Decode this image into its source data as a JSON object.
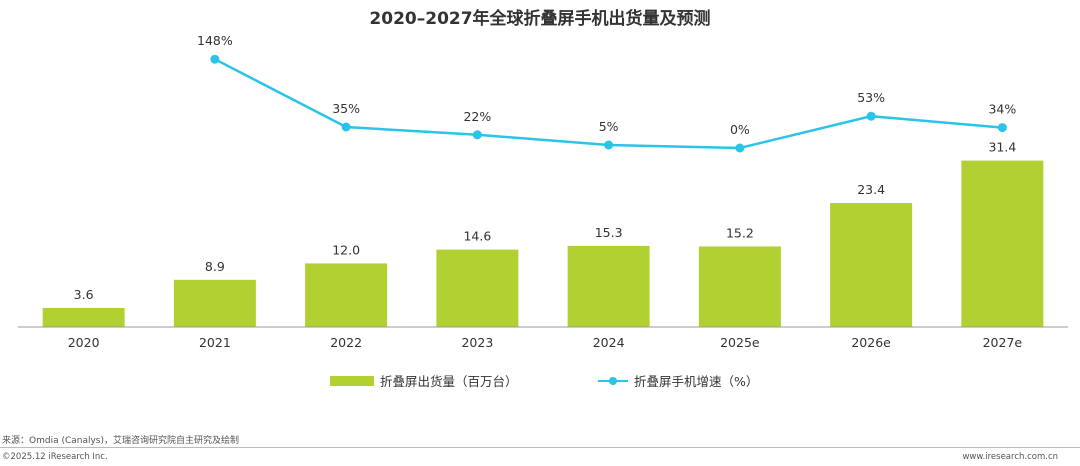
{
  "chart_data": {
    "type": "bar",
    "title": "2020–2027年全球折叠屏手机出货量及预测",
    "categories": [
      "2020",
      "2021",
      "2022",
      "2023",
      "2024",
      "2025e",
      "2026e",
      "2027e"
    ],
    "series": [
      {
        "name": "折叠屏出货量（百万台）",
        "type": "bar",
        "values": [
          3.6,
          8.9,
          12.0,
          14.6,
          15.3,
          15.2,
          23.4,
          31.4
        ],
        "labels": [
          "3.6",
          "8.9",
          "12.0",
          "14.6",
          "15.3",
          "15.2",
          "23.4",
          "31.4"
        ],
        "color": "#b1d132"
      },
      {
        "name": "折叠屏手机增速（%）",
        "type": "line",
        "values": [
          null,
          148,
          35,
          22,
          5,
          0,
          53,
          34
        ],
        "labels": [
          null,
          "148%",
          "35%",
          "22%",
          "5%",
          "0%",
          "53%",
          "34%"
        ],
        "color": "#29c4e8"
      }
    ],
    "legend_position": "bottom",
    "grid": false
  },
  "source": "来源：Omdia (Canalys)，艾瑞咨询研究院自主研究及绘制",
  "copyright": "©2025.12 iResearch Inc.",
  "website": "www.iresearch.com.cn",
  "colors": {
    "bar": "#b1d132",
    "line": "#29c4e8",
    "axis": "#999999"
  }
}
